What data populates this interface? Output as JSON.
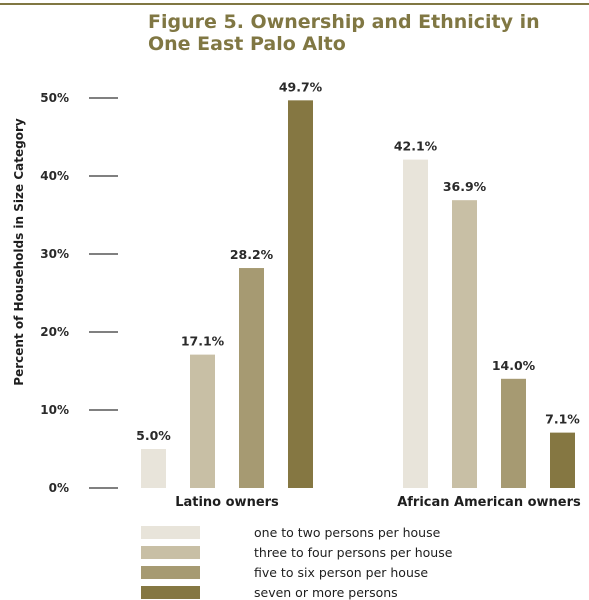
{
  "colors": {
    "title": "#807743",
    "rule": "#807743",
    "axis": "#808080",
    "series": [
      "#e8e4da",
      "#c8bfa5",
      "#a69a72",
      "#857742"
    ]
  },
  "chart_data": {
    "type": "bar",
    "title_lines": [
      "Figure 5. Ownership and Ethnicity in",
      "One East Palo Alto"
    ],
    "ylabel": "Percent of Households in Size Category",
    "xlabel": "",
    "ylim": [
      0,
      50
    ],
    "yticks": [
      0,
      10,
      20,
      30,
      40,
      50
    ],
    "ytick_labels": [
      "0%",
      "10%",
      "20%",
      "30%",
      "40%",
      "50%"
    ],
    "grid": false,
    "legend_position": "bottom",
    "categories": [
      "Latino owners",
      "African American owners"
    ],
    "series": [
      {
        "name": "one to two persons per house",
        "values": [
          5.0,
          42.1
        ],
        "labels": [
          "5.0%",
          "42.1%"
        ]
      },
      {
        "name": "three to four persons per house",
        "values": [
          17.1,
          36.9
        ],
        "labels": [
          "17.1%",
          "36.9%"
        ]
      },
      {
        "name": "five to six person per house",
        "values": [
          28.2,
          14.0
        ],
        "labels": [
          "28.2%",
          "14.0%"
        ]
      },
      {
        "name": "seven or more persons",
        "values": [
          49.7,
          7.1
        ],
        "labels": [
          "49.7%",
          "7.1%"
        ]
      }
    ]
  }
}
